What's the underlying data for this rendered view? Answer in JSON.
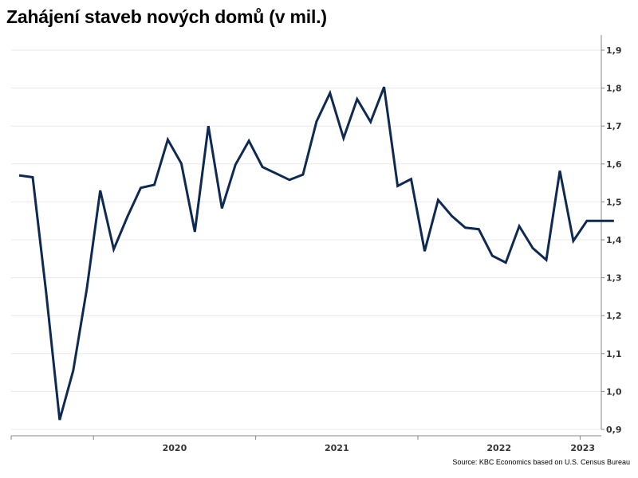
{
  "chart_data": {
    "type": "line",
    "title": "Zahájení staveb nových domů (v mil.)",
    "xlabel": "",
    "ylabel": "",
    "ylim": [
      0.9,
      1.9
    ],
    "y_ticks": [
      "0,9",
      "1,0",
      "1,1",
      "1,2",
      "1,3",
      "1,4",
      "1,5",
      "1,6",
      "1,7",
      "1,8",
      "1,9"
    ],
    "x_tick_labels": [
      "2020",
      "2021",
      "2022",
      "2023"
    ],
    "grid": true,
    "line_color": "#0e2a52",
    "series": [
      {
        "x": [
          "2019-07",
          "2019-08",
          "2019-09",
          "2019-10",
          "2019-11",
          "2019-12",
          "2020-01",
          "2020-02",
          "2020-03",
          "2020-04",
          "2020-05",
          "2020-06",
          "2020-07",
          "2020-08",
          "2020-09",
          "2020-10",
          "2020-11",
          "2020-12",
          "2021-01",
          "2021-02",
          "2021-03",
          "2021-04",
          "2021-05",
          "2021-06",
          "2021-07",
          "2021-08",
          "2021-09",
          "2021-10",
          "2021-11",
          "2021-12",
          "2022-01",
          "2022-02",
          "2022-03",
          "2022-04",
          "2022-05",
          "2022-06",
          "2022-07",
          "2022-08",
          "2022-09",
          "2022-10",
          "2022-11",
          "2022-12",
          "2023-01",
          "2023-02",
          "2023-03"
        ],
        "values": [
          1.57,
          1.565,
          1.26,
          0.925,
          1.055,
          1.27,
          1.53,
          1.375,
          1.46,
          1.537,
          1.545,
          1.664,
          1.601,
          1.421,
          1.7,
          1.483,
          1.598,
          1.661,
          1.592,
          1.575,
          1.558,
          1.572,
          1.712,
          1.787,
          1.668,
          1.771,
          1.711,
          1.803,
          1.542,
          1.56,
          1.37,
          1.505,
          1.463,
          1.432,
          1.428,
          1.358,
          1.34,
          1.436,
          1.378,
          1.347,
          1.582,
          1.397,
          1.45,
          1.45,
          1.45
        ]
      }
    ]
  },
  "footer": {
    "source": "Source: KBC Economics based on U.S. Census Bureau"
  }
}
